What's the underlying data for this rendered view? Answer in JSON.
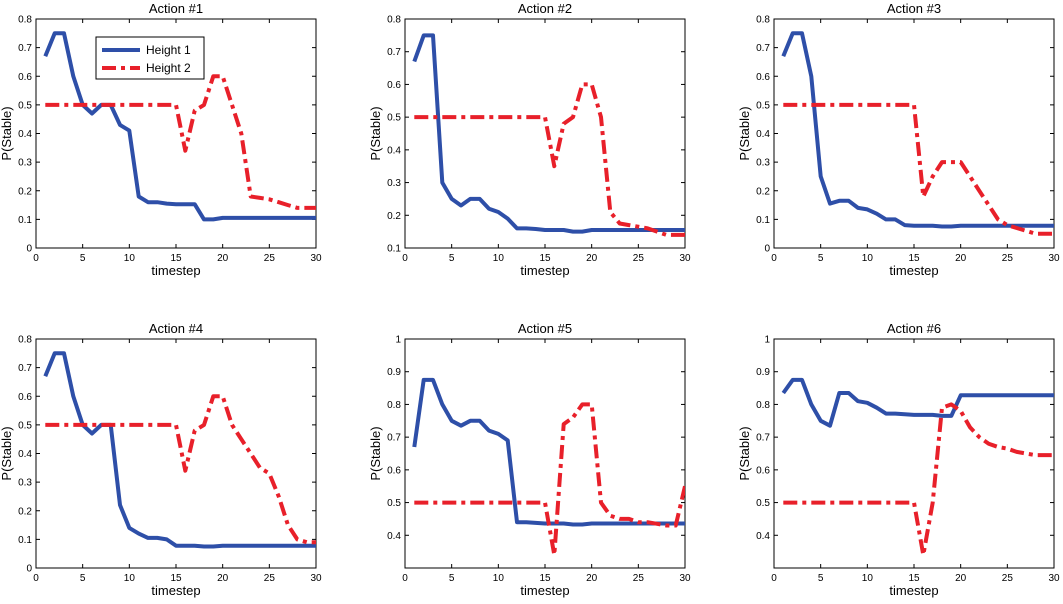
{
  "chart_data": [
    {
      "type": "line",
      "title": "Action #1",
      "xlabel": "timestep",
      "ylabel": "P(Stable)",
      "xlim": [
        0,
        30
      ],
      "ylim": [
        0,
        0.8
      ],
      "xticks": [
        0,
        5,
        10,
        15,
        20,
        25,
        30
      ],
      "xtick_labels": [
        "0",
        "5",
        "10",
        "15",
        "20",
        "25",
        "30"
      ],
      "yticks": [
        0,
        0.1,
        0.2,
        0.3,
        0.4,
        0.5,
        0.6,
        0.7,
        0.8
      ],
      "ytick_labels": [
        "0",
        "0.1",
        "0.2",
        "0.3",
        "0.4",
        "0.5",
        "0.6",
        "0.7",
        "0.8"
      ],
      "legend": "top-left",
      "series": [
        {
          "name": "Height 1",
          "color": "#2e4fa8",
          "style": "solid",
          "x": [
            1,
            2,
            3,
            4,
            5,
            6,
            7,
            8,
            9,
            10,
            11,
            12,
            13,
            14,
            15,
            16,
            17,
            18,
            19,
            20,
            21,
            22,
            23,
            24,
            25,
            26,
            27,
            28,
            29,
            30
          ],
          "y": [
            0.67,
            0.75,
            0.75,
            0.6,
            0.5,
            0.47,
            0.5,
            0.5,
            0.43,
            0.41,
            0.18,
            0.16,
            0.16,
            0.155,
            0.153,
            0.153,
            0.153,
            0.1,
            0.1,
            0.105,
            0.105,
            0.105,
            0.105,
            0.105,
            0.105,
            0.105,
            0.105,
            0.105,
            0.105,
            0.105
          ]
        },
        {
          "name": "Height 2",
          "color": "#e8202a",
          "style": "dashdot",
          "x": [
            1,
            2,
            3,
            4,
            5,
            6,
            7,
            8,
            9,
            10,
            11,
            12,
            13,
            14,
            15,
            16,
            17,
            18,
            19,
            20,
            21,
            22,
            23,
            24,
            25,
            26,
            27,
            28,
            29,
            30
          ],
          "y": [
            0.5,
            0.5,
            0.5,
            0.5,
            0.5,
            0.5,
            0.5,
            0.5,
            0.5,
            0.5,
            0.5,
            0.5,
            0.5,
            0.5,
            0.5,
            0.34,
            0.48,
            0.5,
            0.6,
            0.6,
            0.5,
            0.4,
            0.18,
            0.175,
            0.17,
            0.16,
            0.15,
            0.14,
            0.14,
            0.14
          ]
        }
      ]
    },
    {
      "type": "line",
      "title": "Action #2",
      "xlabel": "timestep",
      "ylabel": "P(Stable)",
      "xlim": [
        0,
        30
      ],
      "ylim": [
        0.1,
        0.8
      ],
      "xticks": [
        0,
        5,
        10,
        15,
        20,
        25,
        30
      ],
      "xtick_labels": [
        "0",
        "5",
        "10",
        "15",
        "20",
        "25",
        "30"
      ],
      "yticks": [
        0.1,
        0.2,
        0.3,
        0.4,
        0.5,
        0.6,
        0.7,
        0.8
      ],
      "ytick_labels": [
        "0.1",
        "0.2",
        "0.3",
        "0.4",
        "0.5",
        "0.6",
        "0.7",
        "0.8"
      ],
      "series": [
        {
          "name": "Height 1",
          "color": "#2e4fa8",
          "style": "solid",
          "x": [
            1,
            2,
            3,
            4,
            5,
            6,
            7,
            8,
            9,
            10,
            11,
            12,
            13,
            14,
            15,
            16,
            17,
            18,
            19,
            20,
            21,
            22,
            23,
            24,
            25,
            26,
            27,
            28,
            29,
            30
          ],
          "y": [
            0.67,
            0.75,
            0.75,
            0.3,
            0.25,
            0.23,
            0.25,
            0.25,
            0.22,
            0.21,
            0.19,
            0.16,
            0.16,
            0.158,
            0.155,
            0.155,
            0.155,
            0.15,
            0.15,
            0.155,
            0.155,
            0.155,
            0.155,
            0.155,
            0.155,
            0.155,
            0.155,
            0.155,
            0.155,
            0.155
          ]
        },
        {
          "name": "Height 2",
          "color": "#e8202a",
          "style": "dashdot",
          "x": [
            1,
            2,
            3,
            4,
            5,
            6,
            7,
            8,
            9,
            10,
            11,
            12,
            13,
            14,
            15,
            16,
            17,
            18,
            19,
            20,
            21,
            22,
            23,
            24,
            25,
            26,
            27,
            28,
            29,
            30
          ],
          "y": [
            0.5,
            0.5,
            0.5,
            0.5,
            0.5,
            0.5,
            0.5,
            0.5,
            0.5,
            0.5,
            0.5,
            0.5,
            0.5,
            0.5,
            0.5,
            0.35,
            0.48,
            0.5,
            0.6,
            0.6,
            0.5,
            0.21,
            0.175,
            0.17,
            0.165,
            0.16,
            0.15,
            0.14,
            0.14,
            0.14
          ]
        }
      ]
    },
    {
      "type": "line",
      "title": "Action #3",
      "xlabel": "timestep",
      "ylabel": "P(Stable)",
      "xlim": [
        0,
        30
      ],
      "ylim": [
        0,
        0.8
      ],
      "xticks": [
        0,
        5,
        10,
        15,
        20,
        25,
        30
      ],
      "xtick_labels": [
        "0",
        "5",
        "10",
        "15",
        "20",
        "25",
        "30"
      ],
      "yticks": [
        0,
        0.1,
        0.2,
        0.3,
        0.4,
        0.5,
        0.6,
        0.7,
        0.8
      ],
      "ytick_labels": [
        "0",
        "0.1",
        "0.2",
        "0.3",
        "0.4",
        "0.5",
        "0.6",
        "0.7",
        "0.8"
      ],
      "series": [
        {
          "name": "Height 1",
          "color": "#2e4fa8",
          "style": "solid",
          "x": [
            1,
            2,
            3,
            4,
            5,
            6,
            7,
            8,
            9,
            10,
            11,
            12,
            13,
            14,
            15,
            16,
            17,
            18,
            19,
            20,
            21,
            22,
            23,
            24,
            25,
            26,
            27,
            28,
            29,
            30
          ],
          "y": [
            0.67,
            0.75,
            0.75,
            0.6,
            0.25,
            0.155,
            0.165,
            0.165,
            0.14,
            0.135,
            0.12,
            0.1,
            0.1,
            0.08,
            0.078,
            0.078,
            0.078,
            0.075,
            0.075,
            0.078,
            0.078,
            0.078,
            0.078,
            0.078,
            0.078,
            0.078,
            0.078,
            0.078,
            0.078,
            0.078
          ]
        },
        {
          "name": "Height 2",
          "color": "#e8202a",
          "style": "dashdot",
          "x": [
            1,
            2,
            3,
            4,
            5,
            6,
            7,
            8,
            9,
            10,
            11,
            12,
            13,
            14,
            15,
            16,
            17,
            18,
            19,
            20,
            21,
            22,
            23,
            24,
            25,
            26,
            27,
            28,
            29,
            30
          ],
          "y": [
            0.5,
            0.5,
            0.5,
            0.5,
            0.5,
            0.5,
            0.5,
            0.5,
            0.5,
            0.5,
            0.5,
            0.5,
            0.5,
            0.5,
            0.5,
            0.18,
            0.25,
            0.3,
            0.3,
            0.3,
            0.25,
            0.2,
            0.15,
            0.1,
            0.08,
            0.07,
            0.06,
            0.05,
            0.05,
            0.05
          ]
        }
      ]
    },
    {
      "type": "line",
      "title": "Action #4",
      "xlabel": "timestep",
      "ylabel": "P(Stable)",
      "xlim": [
        0,
        30
      ],
      "ylim": [
        0,
        0.8
      ],
      "xticks": [
        0,
        5,
        10,
        15,
        20,
        25,
        30
      ],
      "xtick_labels": [
        "0",
        "5",
        "10",
        "15",
        "20",
        "25",
        "30"
      ],
      "yticks": [
        0,
        0.1,
        0.2,
        0.3,
        0.4,
        0.5,
        0.6,
        0.7,
        0.8
      ],
      "ytick_labels": [
        "0",
        "0.1",
        "0.2",
        "0.3",
        "0.4",
        "0.5",
        "0.6",
        "0.7",
        "0.8"
      ],
      "series": [
        {
          "name": "Height 1",
          "color": "#2e4fa8",
          "style": "solid",
          "x": [
            1,
            2,
            3,
            4,
            5,
            6,
            7,
            8,
            9,
            10,
            11,
            12,
            13,
            14,
            15,
            16,
            17,
            18,
            19,
            20,
            21,
            22,
            23,
            24,
            25,
            26,
            27,
            28,
            29,
            30
          ],
          "y": [
            0.67,
            0.75,
            0.75,
            0.6,
            0.5,
            0.47,
            0.5,
            0.5,
            0.22,
            0.14,
            0.12,
            0.105,
            0.105,
            0.1,
            0.078,
            0.078,
            0.078,
            0.075,
            0.075,
            0.078,
            0.078,
            0.078,
            0.078,
            0.078,
            0.078,
            0.078,
            0.078,
            0.078,
            0.078,
            0.078
          ]
        },
        {
          "name": "Height 2",
          "color": "#e8202a",
          "style": "dashdot",
          "x": [
            1,
            2,
            3,
            4,
            5,
            6,
            7,
            8,
            9,
            10,
            11,
            12,
            13,
            14,
            15,
            16,
            17,
            18,
            19,
            20,
            21,
            22,
            23,
            24,
            25,
            26,
            27,
            28,
            29,
            30
          ],
          "y": [
            0.5,
            0.5,
            0.5,
            0.5,
            0.5,
            0.5,
            0.5,
            0.5,
            0.5,
            0.5,
            0.5,
            0.5,
            0.5,
            0.5,
            0.5,
            0.34,
            0.48,
            0.5,
            0.6,
            0.6,
            0.5,
            0.45,
            0.4,
            0.35,
            0.33,
            0.25,
            0.15,
            0.1,
            0.09,
            0.09
          ]
        }
      ]
    },
    {
      "type": "line",
      "title": "Action #5",
      "xlabel": "timestep",
      "ylabel": "P(Stable)",
      "xlim": [
        0,
        30
      ],
      "ylim": [
        0.3,
        1
      ],
      "xticks": [
        0,
        5,
        10,
        15,
        20,
        25,
        30
      ],
      "xtick_labels": [
        "0",
        "5",
        "10",
        "15",
        "20",
        "25",
        "30"
      ],
      "yticks": [
        0.4,
        0.5,
        0.6,
        0.7,
        0.8,
        0.9,
        1
      ],
      "ytick_labels": [
        "0.4",
        "0.5",
        "0.6",
        "0.7",
        "0.8",
        "0.9",
        "1"
      ],
      "series": [
        {
          "name": "Height 1",
          "color": "#2e4fa8",
          "style": "solid",
          "x": [
            1,
            2,
            3,
            4,
            5,
            6,
            7,
            8,
            9,
            10,
            11,
            12,
            13,
            14,
            15,
            16,
            17,
            18,
            19,
            20,
            21,
            22,
            23,
            24,
            25,
            26,
            27,
            28,
            29,
            30
          ],
          "y": [
            0.67,
            0.875,
            0.875,
            0.8,
            0.75,
            0.735,
            0.75,
            0.75,
            0.72,
            0.71,
            0.69,
            0.44,
            0.44,
            0.438,
            0.436,
            0.436,
            0.436,
            0.433,
            0.433,
            0.436,
            0.436,
            0.436,
            0.436,
            0.436,
            0.436,
            0.436,
            0.436,
            0.436,
            0.436,
            0.436
          ]
        },
        {
          "name": "Height 2",
          "color": "#e8202a",
          "style": "dashdot",
          "x": [
            1,
            2,
            3,
            4,
            5,
            6,
            7,
            8,
            9,
            10,
            11,
            12,
            13,
            14,
            15,
            16,
            17,
            18,
            19,
            20,
            21,
            22,
            23,
            24,
            25,
            26,
            27,
            28,
            29,
            30
          ],
          "y": [
            0.5,
            0.5,
            0.5,
            0.5,
            0.5,
            0.5,
            0.5,
            0.5,
            0.5,
            0.5,
            0.5,
            0.5,
            0.5,
            0.5,
            0.5,
            0.34,
            0.74,
            0.76,
            0.8,
            0.8,
            0.5,
            0.46,
            0.45,
            0.45,
            0.44,
            0.44,
            0.435,
            0.43,
            0.43,
            0.55
          ]
        }
      ]
    },
    {
      "type": "line",
      "title": "Action #6",
      "xlabel": "timestep",
      "ylabel": "P(Stable)",
      "xlim": [
        0,
        30
      ],
      "ylim": [
        0.3,
        1
      ],
      "xticks": [
        0,
        5,
        10,
        15,
        20,
        25,
        30
      ],
      "xtick_labels": [
        "0",
        "5",
        "10",
        "15",
        "20",
        "25",
        "30"
      ],
      "yticks": [
        0.4,
        0.5,
        0.6,
        0.7,
        0.8,
        0.9,
        1
      ],
      "ytick_labels": [
        "0.4",
        "0.5",
        "0.6",
        "0.7",
        "0.8",
        "0.9",
        "1"
      ],
      "series": [
        {
          "name": "Height 1",
          "color": "#2e4fa8",
          "style": "solid",
          "x": [
            1,
            2,
            3,
            4,
            5,
            6,
            7,
            8,
            9,
            10,
            11,
            12,
            13,
            14,
            15,
            16,
            17,
            18,
            19,
            20,
            21,
            22,
            23,
            24,
            25,
            26,
            27,
            28,
            29,
            30
          ],
          "y": [
            0.835,
            0.875,
            0.875,
            0.8,
            0.75,
            0.735,
            0.835,
            0.835,
            0.81,
            0.805,
            0.79,
            0.772,
            0.772,
            0.77,
            0.768,
            0.768,
            0.768,
            0.765,
            0.765,
            0.828,
            0.828,
            0.828,
            0.828,
            0.828,
            0.828,
            0.828,
            0.828,
            0.828,
            0.828,
            0.828
          ]
        },
        {
          "name": "Height 2",
          "color": "#e8202a",
          "style": "dashdot",
          "x": [
            1,
            2,
            3,
            4,
            5,
            6,
            7,
            8,
            9,
            10,
            11,
            12,
            13,
            14,
            15,
            16,
            17,
            18,
            19,
            20,
            21,
            22,
            23,
            24,
            25,
            26,
            27,
            28,
            29,
            30
          ],
          "y": [
            0.5,
            0.5,
            0.5,
            0.5,
            0.5,
            0.5,
            0.5,
            0.5,
            0.5,
            0.5,
            0.5,
            0.5,
            0.5,
            0.5,
            0.5,
            0.34,
            0.5,
            0.79,
            0.8,
            0.78,
            0.73,
            0.7,
            0.68,
            0.67,
            0.665,
            0.655,
            0.65,
            0.645,
            0.645,
            0.645
          ]
        }
      ]
    }
  ]
}
